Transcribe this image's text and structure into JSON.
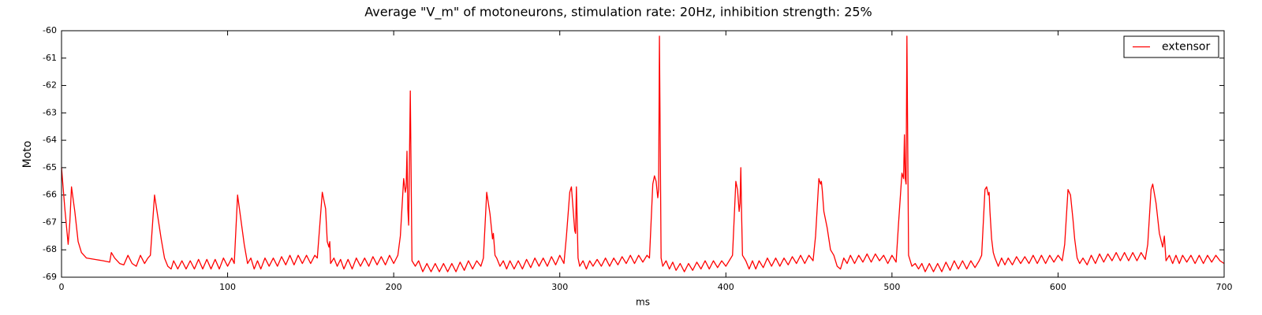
{
  "chart_data": {
    "type": "line",
    "title": "Average \"V_m\" of motoneurons, stimulation rate: 20Hz, inhibition strength: 25%",
    "xlabel": "ms",
    "ylabel": "Moto",
    "xlim": [
      0,
      700
    ],
    "xticks": [
      0,
      100,
      200,
      300,
      400,
      500,
      600,
      700
    ],
    "ylim": [
      -69,
      -60
    ],
    "yticks": [
      -69,
      -68,
      -67,
      -66,
      -65,
      -64,
      -63,
      -62,
      -61,
      -60
    ],
    "legend": "upper right",
    "x": [
      0,
      2,
      4,
      5,
      6,
      8,
      10,
      12,
      15,
      20,
      25,
      29,
      30,
      32,
      35,
      37.5,
      40,
      42.5,
      45,
      47.5,
      50,
      52,
      53.5,
      56,
      58,
      60,
      62,
      64,
      66,
      67.5,
      70,
      72.5,
      75,
      77.5,
      80,
      82.5,
      85,
      87.5,
      90,
      92.5,
      95,
      97.5,
      100,
      102.5,
      104,
      106,
      108,
      110,
      112,
      114,
      116,
      118,
      120,
      122.5,
      125,
      127.5,
      130,
      132.5,
      135,
      137.5,
      140,
      142.5,
      145,
      147.5,
      150,
      152.5,
      154,
      157,
      159,
      160,
      161,
      161.5,
      162,
      164,
      166,
      168,
      170,
      172.5,
      175,
      177.5,
      180,
      182.5,
      185,
      187.5,
      190,
      192.5,
      195,
      197.5,
      200,
      202.5,
      204,
      206,
      207,
      207.5,
      208,
      208.5,
      209,
      210,
      211,
      213,
      215,
      217.5,
      220,
      222.5,
      225,
      227.5,
      230,
      232.5,
      235,
      237.5,
      240,
      242.5,
      245,
      247.5,
      250,
      252.5,
      254,
      256,
      258,
      259,
      259.5,
      260,
      261,
      262,
      264,
      266,
      268,
      270,
      272.5,
      275,
      277.5,
      280,
      282.5,
      285,
      287.5,
      290,
      292.5,
      295,
      297.5,
      300,
      302.5,
      304,
      306,
      307,
      308,
      309,
      309.5,
      310,
      311,
      312,
      314,
      316,
      318,
      320,
      322.5,
      325,
      327.5,
      330,
      332.5,
      335,
      337.5,
      340,
      342.5,
      345,
      347.5,
      350,
      352.5,
      354,
      356,
      357,
      358,
      359,
      359.5,
      360,
      361,
      362,
      364,
      366,
      368,
      370,
      372.5,
      375,
      377.5,
      380,
      382.5,
      385,
      387.5,
      390,
      392.5,
      395,
      397.5,
      400,
      402.5,
      404,
      406,
      407,
      408,
      408.5,
      409,
      409.5,
      410,
      412,
      414,
      416,
      418,
      420,
      422.5,
      425,
      427.5,
      430,
      432.5,
      435,
      437.5,
      440,
      442.5,
      445,
      447.5,
      450,
      452.5,
      454,
      456,
      457,
      457.5,
      458,
      459,
      461,
      463,
      465,
      467,
      469,
      471,
      473,
      475,
      477.5,
      480,
      482.5,
      485,
      487.5,
      490,
      492.5,
      495,
      497.5,
      500,
      502.5,
      504,
      506,
      507,
      507.5,
      508,
      508.5,
      509,
      510,
      512,
      514,
      516,
      518,
      520,
      522.5,
      525,
      527.5,
      530,
      532.5,
      535,
      537.5,
      540,
      542.5,
      545,
      547.5,
      550,
      552.5,
      554,
      556,
      557,
      558,
      558.5,
      559,
      560,
      561,
      562,
      564,
      566,
      568,
      570,
      572.5,
      575,
      577.5,
      580,
      582.5,
      585,
      587.5,
      590,
      592.5,
      595,
      597.5,
      600,
      602.5,
      604,
      606,
      607.5,
      609,
      610,
      611.5,
      613,
      615,
      617.5,
      620,
      622.5,
      625,
      627.5,
      630,
      632.5,
      635,
      637.5,
      640,
      642.5,
      645,
      647.5,
      650,
      652.5,
      654,
      656,
      657,
      659,
      661,
      663,
      664,
      665,
      667,
      669,
      671,
      673,
      675,
      677.5,
      680,
      682.5,
      685,
      687.5,
      690,
      692.5,
      695,
      697.5,
      700
    ],
    "series": [
      {
        "name": "extensor",
        "color": "#ff0000",
        "values": [
          -65.0,
          -66.5,
          -67.8,
          -67.0,
          -65.7,
          -66.6,
          -67.7,
          -68.1,
          -68.3,
          -68.35,
          -68.4,
          -68.45,
          -68.1,
          -68.3,
          -68.5,
          -68.55,
          -68.2,
          -68.5,
          -68.6,
          -68.2,
          -68.5,
          -68.3,
          -68.2,
          -66.0,
          -66.8,
          -67.6,
          -68.3,
          -68.6,
          -68.7,
          -68.4,
          -68.7,
          -68.4,
          -68.7,
          -68.4,
          -68.7,
          -68.35,
          -68.7,
          -68.35,
          -68.7,
          -68.35,
          -68.7,
          -68.3,
          -68.6,
          -68.3,
          -68.5,
          -66.0,
          -66.9,
          -67.8,
          -68.5,
          -68.3,
          -68.7,
          -68.4,
          -68.7,
          -68.3,
          -68.6,
          -68.3,
          -68.6,
          -68.25,
          -68.55,
          -68.2,
          -68.55,
          -68.2,
          -68.5,
          -68.2,
          -68.5,
          -68.2,
          -68.3,
          -65.9,
          -66.5,
          -67.7,
          -67.9,
          -67.7,
          -68.5,
          -68.3,
          -68.6,
          -68.35,
          -68.7,
          -68.35,
          -68.7,
          -68.3,
          -68.6,
          -68.3,
          -68.6,
          -68.25,
          -68.55,
          -68.25,
          -68.55,
          -68.2,
          -68.5,
          -68.2,
          -67.5,
          -65.4,
          -65.9,
          -65.7,
          -64.4,
          -66.5,
          -67.1,
          -62.2,
          -68.4,
          -68.6,
          -68.4,
          -68.8,
          -68.5,
          -68.8,
          -68.5,
          -68.8,
          -68.5,
          -68.8,
          -68.5,
          -68.8,
          -68.45,
          -68.75,
          -68.4,
          -68.7,
          -68.4,
          -68.6,
          -68.3,
          -65.9,
          -66.7,
          -67.3,
          -67.6,
          -67.4,
          -68.2,
          -68.3,
          -68.6,
          -68.4,
          -68.7,
          -68.4,
          -68.7,
          -68.4,
          -68.7,
          -68.35,
          -68.65,
          -68.3,
          -68.6,
          -68.3,
          -68.6,
          -68.25,
          -68.55,
          -68.2,
          -68.5,
          -67.5,
          -65.9,
          -65.7,
          -66.5,
          -67.3,
          -67.4,
          -65.7,
          -68.3,
          -68.6,
          -68.4,
          -68.7,
          -68.4,
          -68.6,
          -68.35,
          -68.6,
          -68.3,
          -68.6,
          -68.3,
          -68.55,
          -68.25,
          -68.5,
          -68.2,
          -68.5,
          -68.2,
          -68.45,
          -68.2,
          -68.3,
          -65.6,
          -65.3,
          -65.5,
          -66.1,
          -65.8,
          -60.2,
          -68.3,
          -68.6,
          -68.4,
          -68.7,
          -68.45,
          -68.75,
          -68.5,
          -68.8,
          -68.5,
          -68.75,
          -68.45,
          -68.7,
          -68.4,
          -68.7,
          -68.4,
          -68.65,
          -68.4,
          -68.6,
          -68.35,
          -68.2,
          -65.5,
          -65.8,
          -66.6,
          -66.3,
          -65.0,
          -66.8,
          -68.2,
          -68.4,
          -68.7,
          -68.4,
          -68.7,
          -68.4,
          -68.65,
          -68.3,
          -68.6,
          -68.3,
          -68.6,
          -68.3,
          -68.55,
          -68.25,
          -68.5,
          -68.2,
          -68.5,
          -68.2,
          -68.4,
          -67.5,
          -65.4,
          -65.6,
          -65.5,
          -65.8,
          -66.6,
          -67.2,
          -68.0,
          -68.2,
          -68.6,
          -68.7,
          -68.3,
          -68.5,
          -68.2,
          -68.5,
          -68.2,
          -68.45,
          -68.15,
          -68.45,
          -68.15,
          -68.4,
          -68.2,
          -68.5,
          -68.2,
          -68.45,
          -67.0,
          -65.2,
          -65.4,
          -63.8,
          -65.4,
          -65.6,
          -60.2,
          -68.2,
          -68.6,
          -68.5,
          -68.7,
          -68.5,
          -68.8,
          -68.5,
          -68.8,
          -68.5,
          -68.8,
          -68.45,
          -68.75,
          -68.4,
          -68.7,
          -68.4,
          -68.7,
          -68.4,
          -68.65,
          -68.4,
          -68.2,
          -65.8,
          -65.7,
          -66.0,
          -65.9,
          -66.6,
          -67.6,
          -68.1,
          -68.3,
          -68.6,
          -68.3,
          -68.55,
          -68.3,
          -68.55,
          -68.25,
          -68.5,
          -68.25,
          -68.5,
          -68.2,
          -68.5,
          -68.2,
          -68.5,
          -68.2,
          -68.45,
          -68.2,
          -68.4,
          -67.8,
          -65.8,
          -66.0,
          -66.9,
          -67.6,
          -68.3,
          -68.5,
          -68.3,
          -68.55,
          -68.2,
          -68.5,
          -68.15,
          -68.45,
          -68.15,
          -68.4,
          -68.1,
          -68.4,
          -68.1,
          -68.4,
          -68.1,
          -68.4,
          -68.1,
          -68.35,
          -67.8,
          -65.8,
          -65.6,
          -66.3,
          -67.4,
          -67.9,
          -67.5,
          -68.4,
          -68.2,
          -68.5,
          -68.2,
          -68.5,
          -68.2,
          -68.45,
          -68.2,
          -68.5,
          -68.2,
          -68.5,
          -68.2,
          -68.45,
          -68.2,
          -68.4,
          -68.5
        ]
      }
    ]
  }
}
